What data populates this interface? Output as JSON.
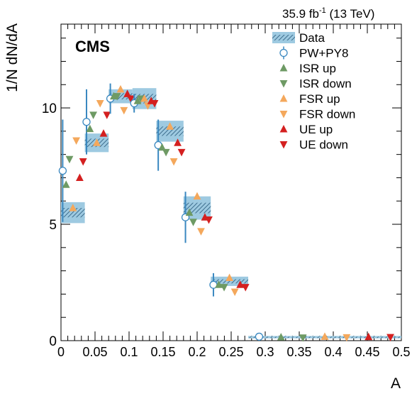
{
  "header": {
    "lumi": "35.9 fb",
    "lumi_exp": "-1",
    "energy": " (13 TeV)"
  },
  "chart_data": {
    "type": "scatter",
    "experiment_label": "CMS",
    "xlabel": "A",
    "ylabel": "1/N dN/dA",
    "xlim": [
      0,
      0.5
    ],
    "ylim": [
      0,
      13.6
    ],
    "x_ticks": [
      "0",
      "0.05",
      "0.1",
      "0.15",
      "0.2",
      "0.25",
      "0.3",
      "0.35",
      "0.4",
      "0.45",
      "0.5"
    ],
    "y_ticks": [
      "0",
      "5",
      "10"
    ],
    "legend_position": "top-right",
    "bins": [
      {
        "lo": 0.0,
        "hi": 0.035
      },
      {
        "lo": 0.035,
        "hi": 0.07
      },
      {
        "lo": 0.07,
        "hi": 0.105
      },
      {
        "lo": 0.105,
        "hi": 0.14
      },
      {
        "lo": 0.14,
        "hi": 0.18
      },
      {
        "lo": 0.18,
        "hi": 0.22
      },
      {
        "lo": 0.22,
        "hi": 0.275
      },
      {
        "lo": 0.275,
        "hi": 0.5
      }
    ],
    "series": [
      {
        "name": "Data",
        "style": "box",
        "color": "#9ecae1",
        "values": [
          5.5,
          8.5,
          10.5,
          10.4,
          9.0,
          5.7,
          2.55,
          0.15
        ],
        "unc": [
          0.45,
          0.4,
          0.3,
          0.45,
          0.45,
          0.5,
          0.2,
          0.05
        ]
      },
      {
        "name": "PW+PY8",
        "style": "circle",
        "color": "#3a88c0",
        "values": [
          7.3,
          9.4,
          10.4,
          10.2,
          8.4,
          5.3,
          2.4,
          0.17
        ],
        "err": [
          2.2,
          1.4,
          0.65,
          0.4,
          1.1,
          1.1,
          0.5,
          0.03
        ]
      },
      {
        "name": "ISR up",
        "style": "tri-up",
        "color": "#6e9a64",
        "values": [
          6.7,
          9.1,
          10.5,
          10.3,
          8.3,
          5.5,
          2.4,
          0.15
        ]
      },
      {
        "name": "ISR down",
        "style": "tri-down",
        "color": "#6e9a64",
        "values": [
          7.8,
          9.7,
          10.5,
          10.4,
          8.1,
          5.1,
          2.3,
          0.13
        ]
      },
      {
        "name": "FSR up",
        "style": "tri-up",
        "color": "#f4a85c",
        "values": [
          5.7,
          8.5,
          10.8,
          10.4,
          9.2,
          6.2,
          2.7,
          0.17
        ]
      },
      {
        "name": "FSR down",
        "style": "tri-down",
        "color": "#f4a85c",
        "values": [
          8.6,
          10.2,
          9.9,
          10.1,
          7.7,
          4.7,
          2.1,
          0.14
        ]
      },
      {
        "name": "UE up",
        "style": "tri-up",
        "color": "#d42020",
        "values": [
          7.0,
          8.9,
          10.6,
          10.3,
          8.5,
          5.3,
          2.4,
          0.16
        ]
      },
      {
        "name": "UE down",
        "style": "tri-down",
        "color": "#d42020",
        "values": [
          7.7,
          9.7,
          10.4,
          10.2,
          8.1,
          5.2,
          2.3,
          0.15
        ]
      }
    ]
  }
}
